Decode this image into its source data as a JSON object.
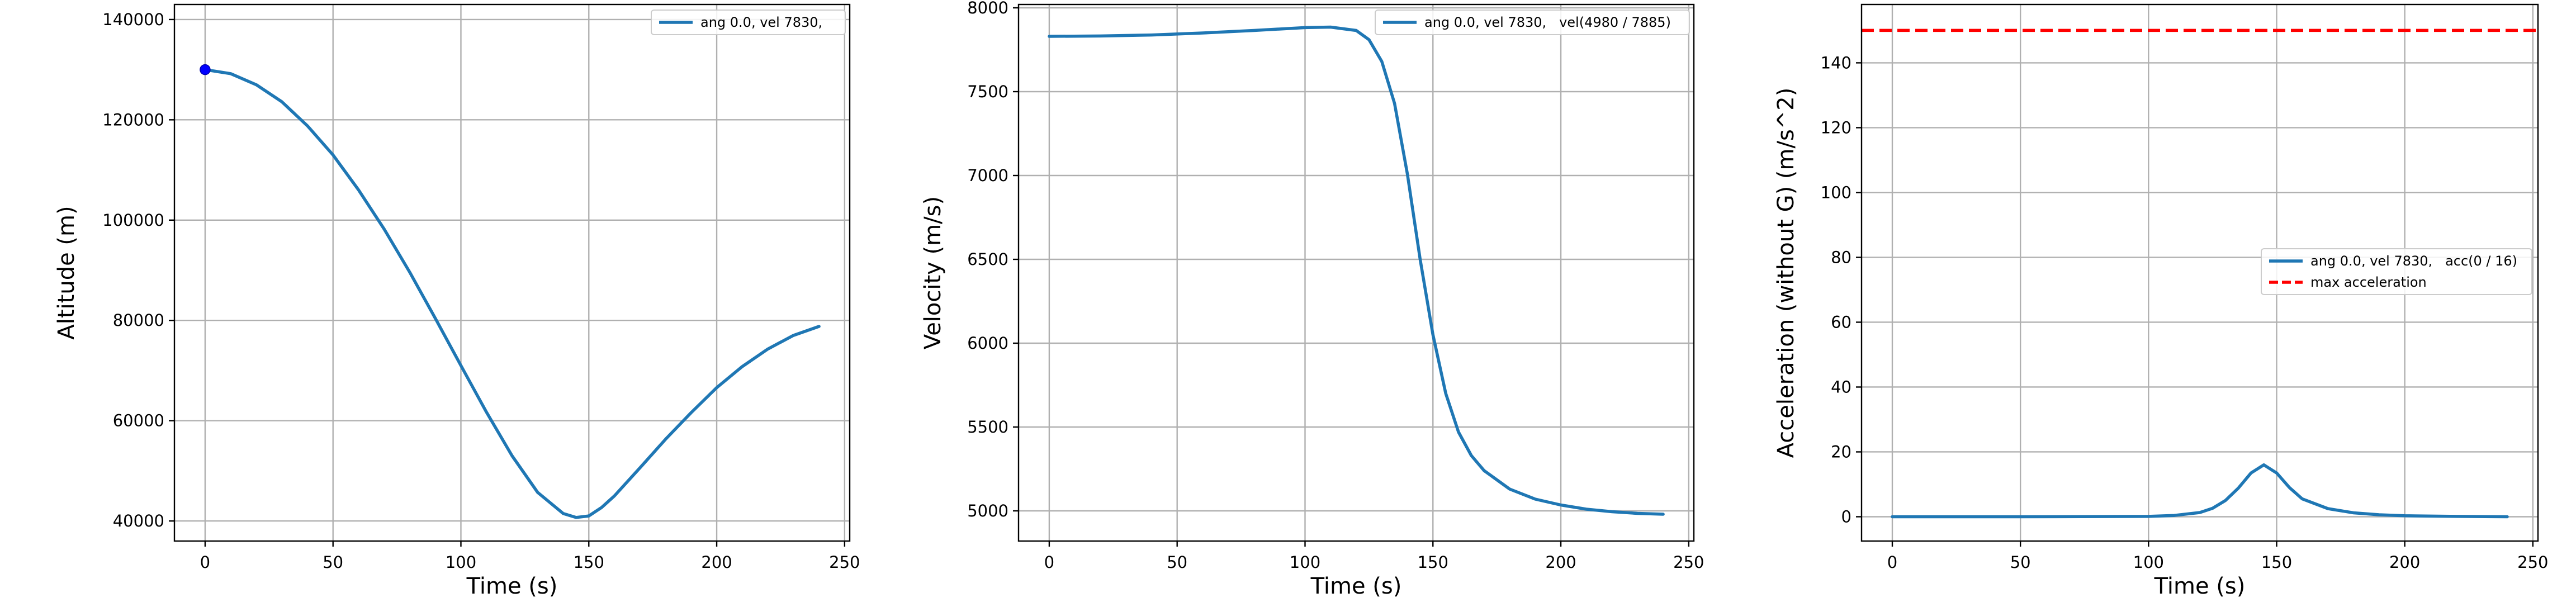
{
  "chart_data": [
    {
      "type": "line",
      "xlabel": "Time (s)",
      "ylabel": "Altitude (m)",
      "xlim": [
        -12,
        252
      ],
      "ylim": [
        36000,
        143000
      ],
      "xticks": [
        0,
        50,
        100,
        150,
        200,
        250
      ],
      "yticks": [
        40000,
        60000,
        80000,
        100000,
        120000,
        140000
      ],
      "yticklabels": [
        "40000",
        "60000",
        "80000",
        "100000",
        "120000",
        "140000"
      ],
      "grid": true,
      "legend_position": "top-right",
      "series": [
        {
          "name": "ang 0.0, vel 7830,",
          "color": "#1f77b4",
          "style": "solid",
          "x": [
            0,
            10,
            20,
            30,
            40,
            50,
            60,
            70,
            80,
            90,
            100,
            110,
            120,
            130,
            140,
            145,
            150,
            155,
            160,
            170,
            180,
            190,
            200,
            210,
            220,
            230,
            240
          ],
          "y": [
            130000,
            129200,
            127000,
            123600,
            118800,
            113000,
            106000,
            98200,
            89600,
            80400,
            71000,
            61700,
            53000,
            45700,
            41500,
            40700,
            41000,
            42700,
            45000,
            50600,
            56300,
            61600,
            66600,
            70800,
            74300,
            77000,
            78800
          ]
        }
      ],
      "markers": [
        {
          "x": 0,
          "y": 130000,
          "color": "#0000ff"
        }
      ]
    },
    {
      "type": "line",
      "xlabel": "Time (s)",
      "ylabel": "Velocity (m/s)",
      "xlim": [
        -12,
        252
      ],
      "ylim": [
        4820,
        8020
      ],
      "xticks": [
        0,
        50,
        100,
        150,
        200,
        250
      ],
      "yticks": [
        5000,
        5500,
        6000,
        6500,
        7000,
        7500,
        8000
      ],
      "yticklabels": [
        "5000",
        "5500",
        "6000",
        "6500",
        "7000",
        "7500",
        "8000"
      ],
      "grid": true,
      "legend_position": "top-right",
      "series": [
        {
          "name": "ang 0.0, vel 7830,   vel(4980 / 7885)",
          "color": "#1f77b4",
          "style": "solid",
          "x": [
            0,
            20,
            40,
            60,
            80,
            100,
            110,
            120,
            125,
            130,
            135,
            140,
            145,
            150,
            155,
            160,
            165,
            170,
            180,
            190,
            200,
            210,
            220,
            230,
            240
          ],
          "y": [
            7830,
            7832,
            7838,
            7850,
            7865,
            7882,
            7885,
            7865,
            7810,
            7680,
            7430,
            7010,
            6500,
            6050,
            5700,
            5470,
            5330,
            5240,
            5130,
            5070,
            5035,
            5010,
            4995,
            4985,
            4980
          ]
        }
      ]
    },
    {
      "type": "line",
      "xlabel": "Time (s)",
      "ylabel": "Acceleration (without G) (m/s^2)",
      "xlim": [
        -12,
        252
      ],
      "ylim": [
        -7.5,
        158
      ],
      "xticks": [
        0,
        50,
        100,
        150,
        200,
        250
      ],
      "yticks": [
        0,
        20,
        40,
        60,
        80,
        100,
        120,
        140
      ],
      "yticklabels": [
        "0",
        "20",
        "40",
        "60",
        "80",
        "100",
        "120",
        "140"
      ],
      "grid": true,
      "legend_position": "center-right",
      "series": [
        {
          "name": "ang 0.0, vel 7830,   acc(0 / 16)",
          "color": "#1f77b4",
          "style": "solid",
          "x": [
            0,
            50,
            100,
            110,
            120,
            125,
            130,
            135,
            140,
            145,
            150,
            155,
            160,
            170,
            180,
            190,
            200,
            220,
            240
          ],
          "y": [
            0,
            0,
            0.1,
            0.4,
            1.3,
            2.6,
            5,
            8.8,
            13.5,
            16,
            13.5,
            9,
            5.5,
            2.5,
            1.2,
            0.6,
            0.3,
            0.1,
            0
          ]
        },
        {
          "name": "max acceleration",
          "color": "#ff0000",
          "style": "dashed",
          "x": [
            -12,
            252
          ],
          "y": [
            150,
            150
          ]
        }
      ]
    }
  ]
}
